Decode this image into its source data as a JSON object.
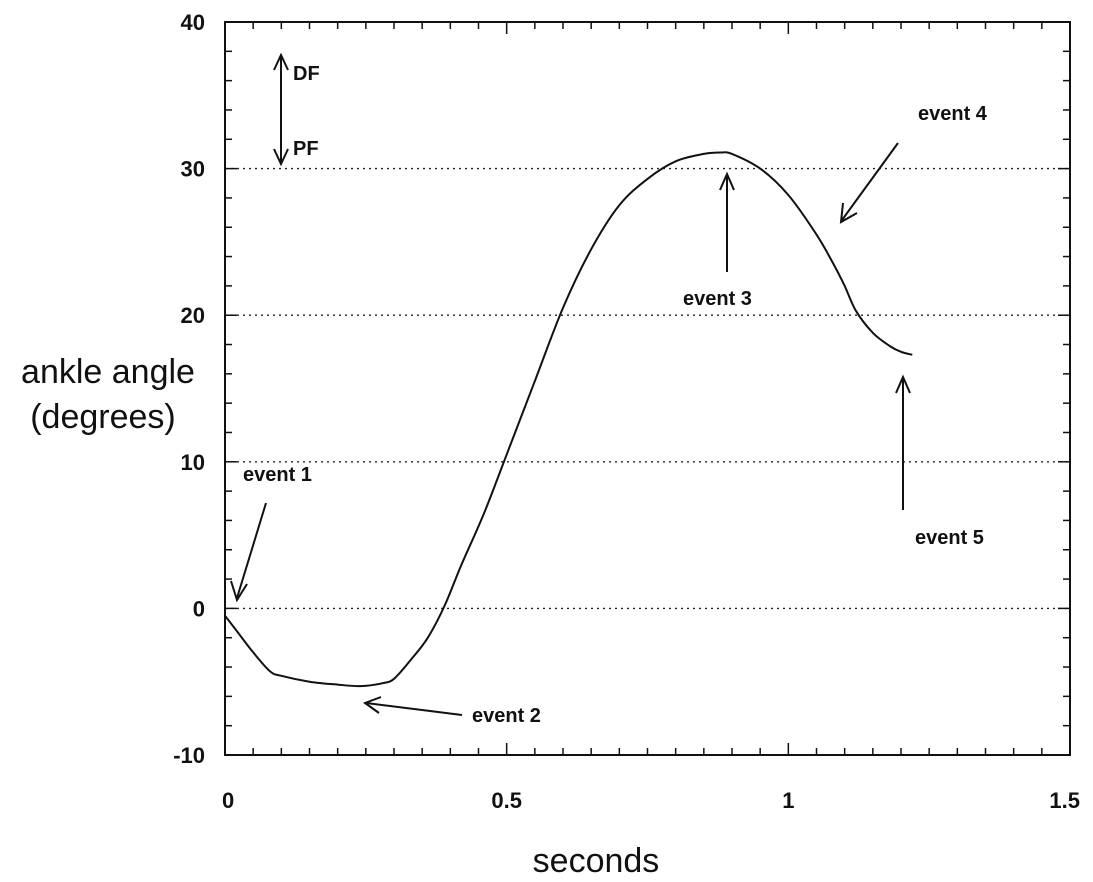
{
  "chart_data": {
    "type": "line",
    "title": "",
    "xlabel": "seconds",
    "ylabel_line1": "ankle angle",
    "ylabel_line2": "(degrees)",
    "xlim": [
      0,
      1.5
    ],
    "ylim": [
      -10,
      40
    ],
    "x_ticks": [
      0,
      0.5,
      1,
      1.5
    ],
    "x_tick_labels": [
      "0",
      "0.5",
      "1",
      "1.5"
    ],
    "y_ticks": [
      -10,
      0,
      10,
      20,
      30,
      40
    ],
    "y_tick_labels": [
      "-10",
      "0",
      "10",
      "20",
      "30",
      "40"
    ],
    "grid_y": [
      0,
      10,
      20,
      30
    ],
    "grid": "horizontal dotted",
    "series": [
      {
        "x": [
          0,
          0.02,
          0.05,
          0.08,
          0.1,
          0.15,
          0.2,
          0.24,
          0.28,
          0.3,
          0.33,
          0.36,
          0.39,
          0.42,
          0.46,
          0.5,
          0.55,
          0.6,
          0.65,
          0.7,
          0.75,
          0.8,
          0.85,
          0.88,
          0.9,
          0.95,
          1.0,
          1.05,
          1.08,
          1.1,
          1.12,
          1.15,
          1.18,
          1.2,
          1.22
        ],
        "y": [
          -0.5,
          -1.5,
          -3,
          -4.3,
          -4.6,
          -5,
          -5.2,
          -5.3,
          -5.1,
          -4.8,
          -3.5,
          -2,
          0.2,
          3,
          6.5,
          10.5,
          15.5,
          20.5,
          24.5,
          27.5,
          29.3,
          30.5,
          31,
          31.1,
          31,
          30,
          28.2,
          25.5,
          23.5,
          22,
          20.3,
          18.8,
          17.9,
          17.5,
          17.3
        ]
      }
    ],
    "annotations": [
      {
        "label": "DF"
      },
      {
        "label": "PF"
      },
      {
        "label": "event 1"
      },
      {
        "label": "event 2"
      },
      {
        "label": "event 3"
      },
      {
        "label": "event 4"
      },
      {
        "label": "event 5"
      }
    ]
  }
}
